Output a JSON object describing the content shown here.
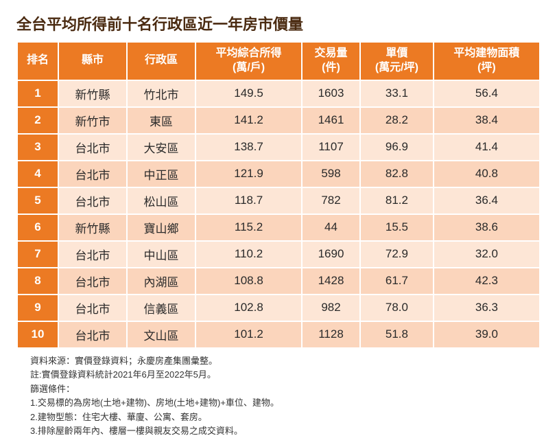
{
  "title": "全台平均所得前十名行政區近一年房市價量",
  "columns": [
    "排名",
    "縣市",
    "行政區",
    "平均綜合所得\n(萬/戶)",
    "交易量\n(件)",
    "單價\n(萬元/坪)",
    "平均建物面積\n(坪)"
  ],
  "rows": [
    {
      "rank": "1",
      "county": "新竹縣",
      "district": "竹北市",
      "income": "149.5",
      "volume": "1603",
      "price": "33.1",
      "area": "56.4"
    },
    {
      "rank": "2",
      "county": "新竹市",
      "district": "東區",
      "income": "141.2",
      "volume": "1461",
      "price": "28.2",
      "area": "38.4"
    },
    {
      "rank": "3",
      "county": "台北市",
      "district": "大安區",
      "income": "138.7",
      "volume": "1107",
      "price": "96.9",
      "area": "41.4"
    },
    {
      "rank": "4",
      "county": "台北市",
      "district": "中正區",
      "income": "121.9",
      "volume": "598",
      "price": "82.8",
      "area": "40.8"
    },
    {
      "rank": "5",
      "county": "台北市",
      "district": "松山區",
      "income": "118.7",
      "volume": "782",
      "price": "81.2",
      "area": "36.4"
    },
    {
      "rank": "6",
      "county": "新竹縣",
      "district": "寶山鄉",
      "income": "115.2",
      "volume": "44",
      "price": "15.5",
      "area": "38.6"
    },
    {
      "rank": "7",
      "county": "台北市",
      "district": "中山區",
      "income": "110.2",
      "volume": "1690",
      "price": "72.9",
      "area": "32.0"
    },
    {
      "rank": "8",
      "county": "台北市",
      "district": "內湖區",
      "income": "108.8",
      "volume": "1428",
      "price": "61.7",
      "area": "42.3"
    },
    {
      "rank": "9",
      "county": "台北市",
      "district": "信義區",
      "income": "102.8",
      "volume": "982",
      "price": "78.0",
      "area": "36.3"
    },
    {
      "rank": "10",
      "county": "台北市",
      "district": "文山區",
      "income": "101.2",
      "volume": "1128",
      "price": "51.8",
      "area": "39.0"
    }
  ],
  "notes": [
    "資料來源：實價登錄資料；永慶房產集團彙整。",
    "註:實價登錄資料統計2021年6月至2022年5月。",
    "篩選條件：",
    "1.交易標的為房地(土地+建物)、房地(土地+建物)+車位、建物。",
    "2.建物型態：住宅大樓、華廈、公寓、套房。",
    "3.排除屋齡兩年內、樓層一樓與親友交易之成交資料。"
  ],
  "style": {
    "header_bg": "#ec7a23",
    "header_fg": "#ffffff",
    "row_even_bg": "#fde6d6",
    "row_odd_bg": "#fbd5bc",
    "rank_bg": "#ec7a23",
    "rank_fg": "#ffffff",
    "title_color": "#4a2a10",
    "border_color": "#ffffff",
    "title_fontsize": 22,
    "header_fontsize": 16,
    "cell_fontsize": 17,
    "notes_fontsize": 13
  }
}
